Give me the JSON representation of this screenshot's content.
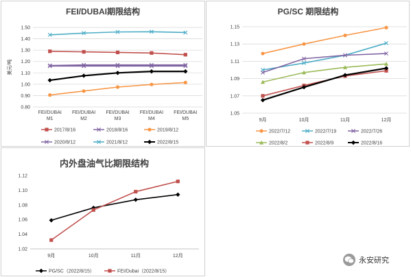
{
  "chart_data": [
    {
      "type": "line",
      "title": "FEI/DUBAI期限结构",
      "ylabel": "美元/吨",
      "categories": [
        "FEI/DUBAI M1",
        "FEI/DUBAI M2",
        "FEI/DUBAI M3",
        "FEI/DUBAI M4",
        "FEI/DUBAI M5"
      ],
      "ylim": [
        0.8,
        1.5
      ],
      "yticks": [
        "0.80",
        "0.90",
        "1.00",
        "1.10",
        "1.20",
        "1.30",
        "1.40",
        "1.50"
      ],
      "grid": true,
      "legend": "bottom",
      "series": [
        {
          "name": "2017/8/16",
          "color": "#c0504d",
          "marker": "square",
          "values": [
            1.29,
            1.285,
            1.28,
            1.275,
            1.26
          ]
        },
        {
          "name": "2018/8/16",
          "color": "#8064a2",
          "marker": "x",
          "values": [
            1.165,
            1.17,
            1.17,
            1.17,
            1.17
          ]
        },
        {
          "name": "2019/8/12",
          "color": "#f79646",
          "marker": "circle",
          "values": [
            0.905,
            0.94,
            0.975,
            0.998,
            1.015
          ]
        },
        {
          "name": "2020/8/12",
          "color": "#8064a2",
          "marker": "x",
          "values": [
            1.16,
            1.16,
            1.16,
            1.16,
            1.16
          ]
        },
        {
          "name": "2021/8/12",
          "color": "#4bacc6",
          "marker": "x",
          "values": [
            1.435,
            1.45,
            1.46,
            1.462,
            1.455
          ]
        },
        {
          "name": "2022/8/15",
          "color": "#000000",
          "marker": "diamond",
          "bold": true,
          "values": [
            1.035,
            1.075,
            1.1,
            1.113,
            1.113
          ]
        }
      ]
    },
    {
      "type": "line",
      "title": "PG/SC 期限结构",
      "categories": [
        "9月",
        "10月",
        "11月",
        "12月"
      ],
      "ylim": [
        1.05,
        1.15
      ],
      "yticks": [
        "1.05",
        "1.07",
        "1.09",
        "1.11",
        "1.13",
        "1.15"
      ],
      "grid": true,
      "legend": "bottom",
      "series": [
        {
          "name": "2022/7/12",
          "color": "#f79646",
          "marker": "circle",
          "values": [
            1.119,
            1.13,
            1.14,
            1.149
          ]
        },
        {
          "name": "2022/7/19",
          "color": "#4bacc6",
          "marker": "x",
          "values": [
            1.1,
            1.108,
            1.117,
            1.131
          ]
        },
        {
          "name": "2022/7/26",
          "color": "#8064a2",
          "marker": "x",
          "values": [
            1.097,
            1.113,
            1.117,
            1.119
          ]
        },
        {
          "name": "2022/8/2",
          "color": "#9bbb59",
          "marker": "triangle",
          "values": [
            1.086,
            1.097,
            1.103,
            1.107
          ]
        },
        {
          "name": "2022/8/9",
          "color": "#c0504d",
          "marker": "square",
          "values": [
            1.07,
            1.082,
            1.093,
            1.099
          ]
        },
        {
          "name": "2022/8/16",
          "color": "#000000",
          "marker": "diamond",
          "bold": true,
          "values": [
            1.065,
            1.08,
            1.094,
            1.102
          ]
        }
      ]
    },
    {
      "type": "line",
      "title": "内外盘油气比期限结构",
      "categories": [
        "9月",
        "10月",
        "11月",
        "12月"
      ],
      "ylim": [
        1.02,
        1.12
      ],
      "yticks": [
        "1.02",
        "1.04",
        "1.06",
        "1.08",
        "1.10",
        "1.12"
      ],
      "grid": false,
      "legend": "bottom",
      "series": [
        {
          "name": "PG/SC（2022/8/15）",
          "color": "#000000",
          "marker": "diamond",
          "values": [
            1.059,
            1.076,
            1.087,
            1.094
          ]
        },
        {
          "name": "FEI/Dubai（2022/8/15）",
          "color": "#c0504d",
          "marker": "square",
          "values": [
            1.032,
            1.073,
            1.098,
            1.112
          ]
        }
      ]
    }
  ],
  "watermark": {
    "text": "永安研究",
    "icon": "wechat-icon"
  }
}
